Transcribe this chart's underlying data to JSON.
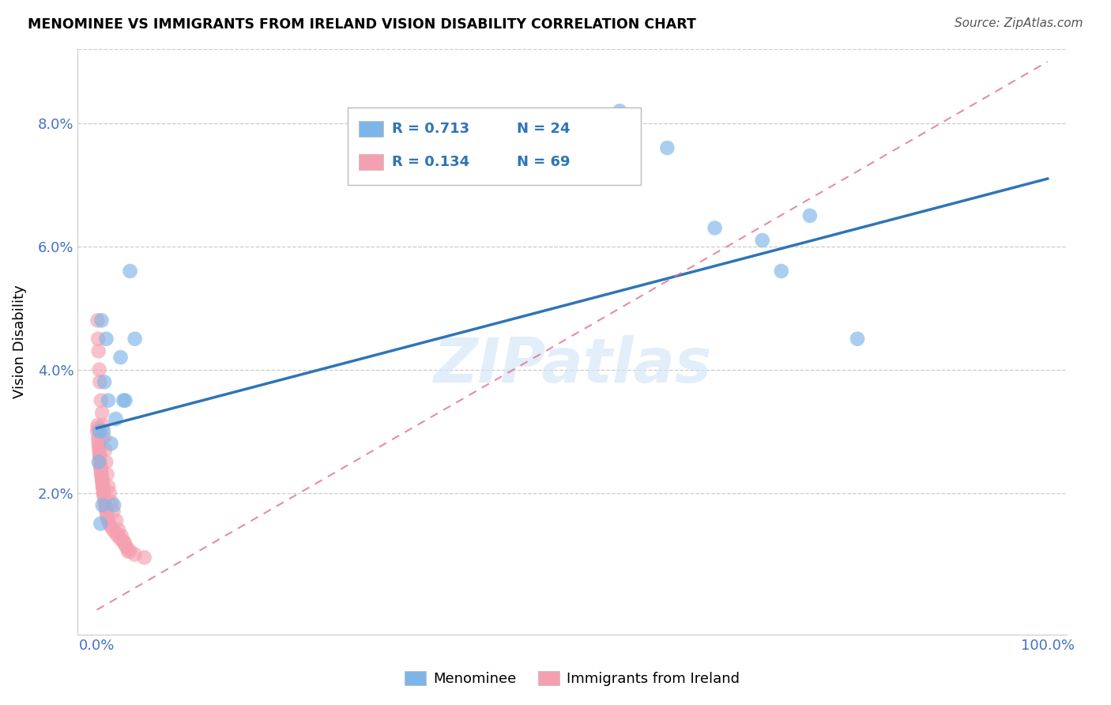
{
  "title": "MENOMINEE VS IMMIGRANTS FROM IRELAND VISION DISABILITY CORRELATION CHART",
  "source": "Source: ZipAtlas.com",
  "ylabel": "Vision Disability",
  "xlim": [
    -2,
    102
  ],
  "ylim": [
    -0.3,
    9.2
  ],
  "yticks": [
    0,
    2,
    4,
    6,
    8
  ],
  "ytick_labels": [
    "",
    "2.0%",
    "4.0%",
    "6.0%",
    "8.0%"
  ],
  "xticks": [
    0,
    20,
    40,
    60,
    80,
    100
  ],
  "xtick_labels": [
    "0.0%",
    "",
    "",
    "",
    "",
    "100.0%"
  ],
  "blue_scatter_x": [
    0.5,
    1.0,
    0.8,
    2.5,
    2.0,
    1.5,
    0.3,
    0.2,
    4.0,
    3.5,
    1.8,
    0.6,
    0.4,
    0.7,
    1.2,
    2.8,
    3.0,
    55,
    65,
    75,
    80,
    70,
    72,
    60
  ],
  "blue_scatter_y": [
    4.8,
    4.5,
    3.8,
    4.2,
    3.2,
    2.8,
    3.0,
    2.5,
    4.5,
    5.6,
    1.8,
    1.8,
    1.5,
    3.0,
    3.5,
    3.5,
    3.5,
    8.2,
    6.3,
    6.5,
    4.5,
    6.1,
    5.6,
    7.6
  ],
  "pink_scatter_x": [
    0.05,
    0.1,
    0.12,
    0.15,
    0.18,
    0.2,
    0.22,
    0.25,
    0.28,
    0.3,
    0.32,
    0.35,
    0.38,
    0.4,
    0.42,
    0.45,
    0.48,
    0.5,
    0.52,
    0.55,
    0.58,
    0.6,
    0.62,
    0.65,
    0.68,
    0.7,
    0.72,
    0.75,
    0.8,
    0.85,
    0.9,
    0.95,
    1.0,
    1.05,
    1.1,
    1.2,
    1.3,
    1.5,
    1.7,
    2.0,
    2.2,
    2.5,
    2.8,
    3.0,
    3.2,
    3.5,
    4.0,
    5.0,
    0.08,
    0.14,
    0.19,
    0.26,
    0.33,
    0.44,
    0.56,
    0.66,
    0.76,
    0.88,
    0.98,
    1.08,
    1.22,
    1.35,
    1.55,
    1.75,
    2.05,
    2.3,
    2.6,
    2.9,
    3.3
  ],
  "pink_scatter_y": [
    3.0,
    3.1,
    3.05,
    2.9,
    2.85,
    2.8,
    2.75,
    2.7,
    2.65,
    2.6,
    2.6,
    2.5,
    2.45,
    2.4,
    2.4,
    2.35,
    2.3,
    2.3,
    2.25,
    2.2,
    2.2,
    2.15,
    2.1,
    2.1,
    2.05,
    2.0,
    2.0,
    1.95,
    1.9,
    1.85,
    1.8,
    1.75,
    1.7,
    1.65,
    1.6,
    1.55,
    1.5,
    1.45,
    1.4,
    1.35,
    1.3,
    1.25,
    1.2,
    1.15,
    1.1,
    1.05,
    1.0,
    0.95,
    4.8,
    4.5,
    4.3,
    4.0,
    3.8,
    3.5,
    3.3,
    3.1,
    2.9,
    2.7,
    2.5,
    2.3,
    2.1,
    2.0,
    1.85,
    1.7,
    1.55,
    1.4,
    1.3,
    1.2,
    1.05
  ],
  "blue_line_x0": 0,
  "blue_line_x1": 100,
  "blue_line_y0": 3.05,
  "blue_line_y1": 7.1,
  "pink_line_x0": 0,
  "pink_line_x1": 100,
  "pink_line_y0": 0.1,
  "pink_line_y1": 9.0,
  "blue_color": "#7EB5E8",
  "pink_color": "#F5A0B0",
  "blue_line_color": "#2E75B6",
  "pink_line_color": "#E07090",
  "watermark": "ZIPatlas",
  "legend_r_blue": "R = 0.713",
  "legend_n_blue": "N = 24",
  "legend_r_pink": "R = 0.134",
  "legend_n_pink": "N = 69",
  "legend_label_blue": "Menominee",
  "legend_label_pink": "Immigrants from Ireland"
}
